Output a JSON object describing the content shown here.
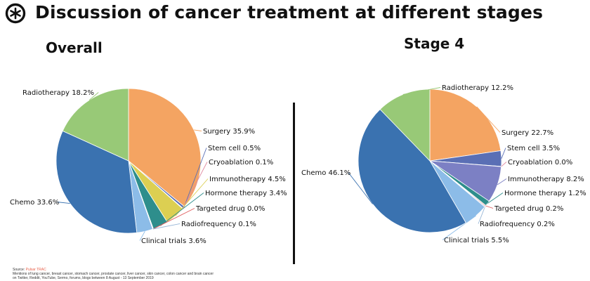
{
  "header": {
    "title": "Discussion of cancer treatment at different stages",
    "logo_icon": "pulsar-logo-icon"
  },
  "colors": {
    "Radiotherapy": "#98c977",
    "Surgery": "#f4a462",
    "Stem cell": "#5a6fb5",
    "Cryoablation": "#e08aa0",
    "Immunotherapy": "#dccf52",
    "Hormone therapy": "#2e8e8c",
    "Targeted drug": "#e05a5a",
    "Radiofrequency": "#96b5d6",
    "Clinical trials": "#8cbce8",
    "Chemo": "#3a72b0",
    "Immunotherapy_stage4": "#7c80c4"
  },
  "chart_data": [
    {
      "type": "pie",
      "title": "Overall",
      "slices": [
        {
          "label": "Surgery",
          "value": 35.9,
          "text": "Surgery 35.9%"
        },
        {
          "label": "Stem cell",
          "value": 0.5,
          "text": "Stem cell 0.5%"
        },
        {
          "label": "Cryoablation",
          "value": 0.1,
          "text": "Cryoablation 0.1%"
        },
        {
          "label": "Immunotherapy",
          "value": 4.5,
          "text": "Immunotherapy 4.5%"
        },
        {
          "label": "Hormone therapy",
          "value": 3.4,
          "text": "Hormone therapy 3.4%"
        },
        {
          "label": "Targeted drug",
          "value": 0.0,
          "text": "Targeted drug 0.0%"
        },
        {
          "label": "Radiofrequency",
          "value": 0.1,
          "text": "Radiofrequency 0.1%"
        },
        {
          "label": "Clinical trials",
          "value": 3.6,
          "text": "Clinical trials 3.6%"
        },
        {
          "label": "Chemo",
          "value": 33.6,
          "text": "Chemo 33.6%"
        },
        {
          "label": "Radiotherapy",
          "value": 18.2,
          "text": "Radiotherapy 18.2%"
        }
      ]
    },
    {
      "type": "pie",
      "title": "Stage 4",
      "slices": [
        {
          "label": "Surgery",
          "value": 22.7,
          "text": "Surgery 22.7%"
        },
        {
          "label": "Stem cell",
          "value": 3.5,
          "text": "Stem cell 3.5%"
        },
        {
          "label": "Cryoablation",
          "value": 0.0,
          "text": "Cryoablation 0.0%"
        },
        {
          "label": "Immunotherapy",
          "value": 8.2,
          "text": "Immunotherapy 8.2%"
        },
        {
          "label": "Hormone therapy",
          "value": 1.2,
          "text": "Hormone therapy 1.2%"
        },
        {
          "label": "Targeted drug",
          "value": 0.2,
          "text": "Targeted drug 0.2%"
        },
        {
          "label": "Radiofrequency",
          "value": 0.2,
          "text": "Radiofrequency 0.2%"
        },
        {
          "label": "Clinical trials",
          "value": 5.5,
          "text": "Clinical trials 5.5%"
        },
        {
          "label": "Chemo",
          "value": 46.1,
          "text": "Chemo 46.1%"
        },
        {
          "label": "Radiotherapy",
          "value": 12.2,
          "text": "Radiotherapy 12.2%"
        }
      ]
    }
  ],
  "footer": {
    "source_prefix": "Source: ",
    "source_name": "Pulsar TRAC",
    "note_line1": "Mentions of lung cancer, breast cancer, stomach cancer, prostate cancer, liver cancer, skin cancer, colon cancer and brain cancer",
    "note_line2": "on Twitter, Reddit, YouTube, Sermo, forums, blogs between 8 August - 13 September 2019"
  }
}
